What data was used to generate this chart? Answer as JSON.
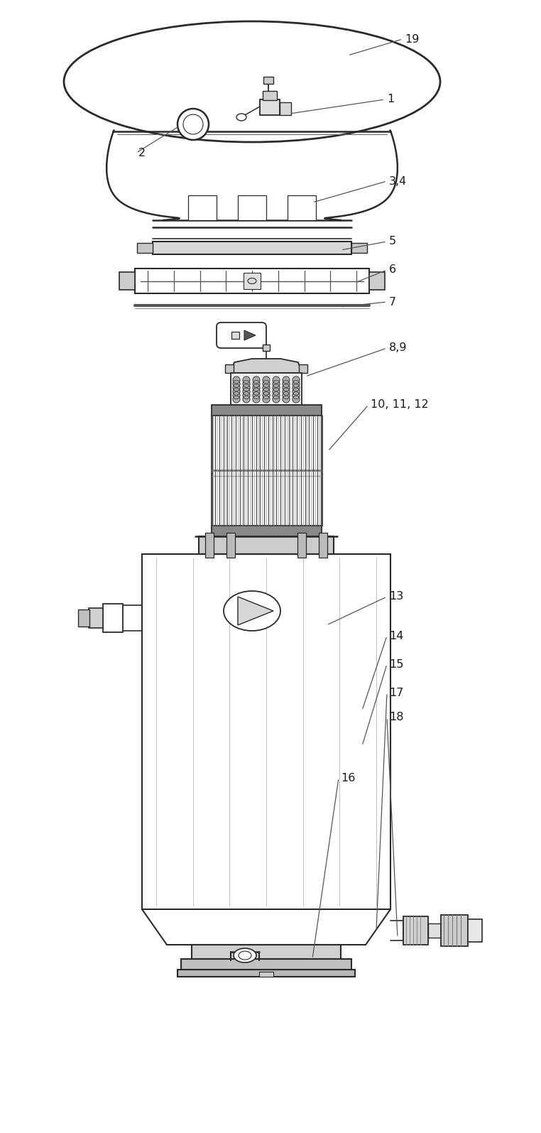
{
  "bg_color": "#ffffff",
  "line_color": "#2a2a2a",
  "label_color": "#1a1a1a",
  "figsize": [
    7.62,
    15.95
  ],
  "dpi": 100
}
